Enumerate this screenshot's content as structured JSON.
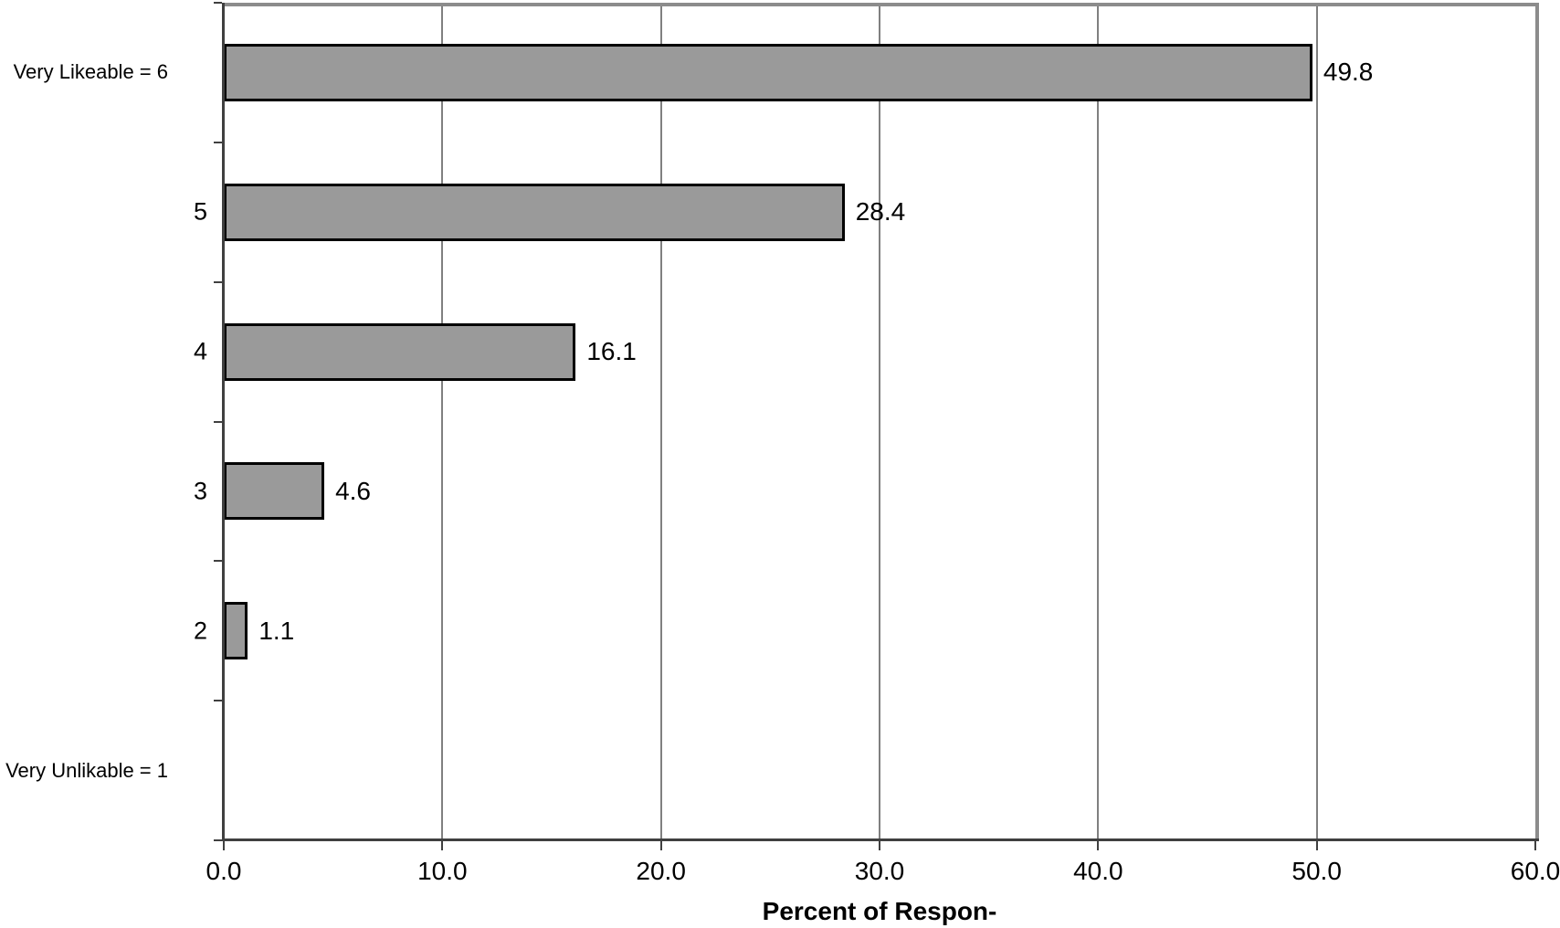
{
  "chart_data": {
    "type": "bar",
    "orientation": "horizontal",
    "title": "",
    "xlabel": "Percent of Respon-",
    "ylabel": "",
    "categories": [
      "Very Likeable = 6",
      "5",
      "4",
      "3",
      "2",
      "Very Unlikable = 1"
    ],
    "values": [
      49.8,
      28.4,
      16.1,
      4.6,
      1.1,
      0
    ],
    "data_labels": [
      "49.8",
      "28.4",
      "16.1",
      "4.6",
      "1.1",
      ""
    ],
    "x_ticks": [
      "0.0",
      "10.0",
      "20.0",
      "30.0",
      "40.0",
      "50.0",
      "60.0"
    ],
    "xlim": [
      0,
      60
    ],
    "grid": true,
    "legend": "none",
    "colors": {
      "bar_fill": "#9A9A9A",
      "bar_border": "#000000",
      "gridline": "#808080",
      "axis": "#404040",
      "plot_border": "#8C8C8C",
      "text": "#000000",
      "background": "#FFFFFF"
    }
  }
}
